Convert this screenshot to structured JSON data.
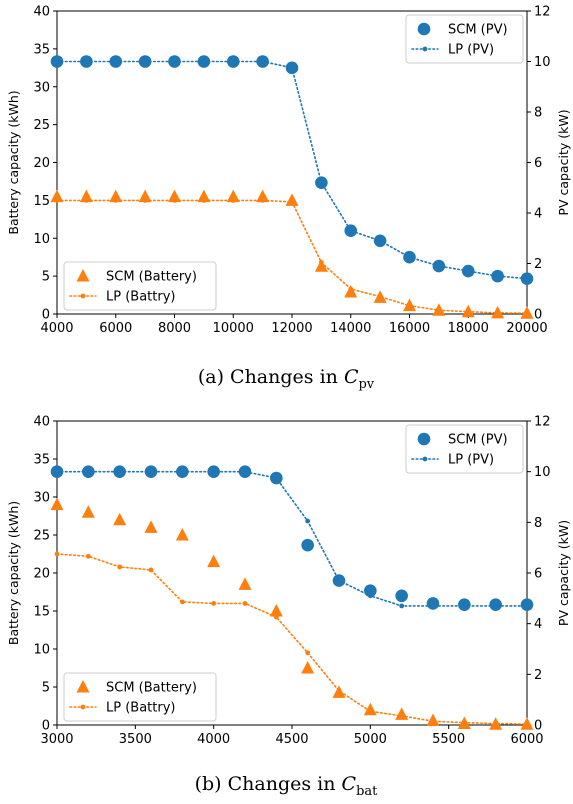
{
  "colors": {
    "scm_pv": "#1f77b4",
    "lp_pv": "#1f77b4",
    "scm_battery": "#ff7f0e",
    "lp_battery": "#ff7f0e"
  },
  "chart_data": [
    {
      "type": "scatter",
      "caption_prefix": "(a) Changes in ",
      "caption_var": "C",
      "caption_sub": "pv",
      "xlabel": "",
      "ylabel_left": "Battery capacity (kWh)",
      "ylabel_right": "PV capacity (kW)",
      "xlim": [
        4000,
        20000
      ],
      "ylim_left": [
        0,
        40
      ],
      "ylim_right": [
        0,
        12
      ],
      "xticks": [
        4000,
        6000,
        8000,
        10000,
        12000,
        14000,
        16000,
        18000,
        20000
      ],
      "yticks_left": [
        0,
        5,
        10,
        15,
        20,
        25,
        30,
        35,
        40
      ],
      "yticks_right": [
        0,
        2,
        4,
        6,
        8,
        10,
        12
      ],
      "legend_right_top": [
        "SCM (PV)",
        "LP (PV)"
      ],
      "legend_left_bottom": [
        "SCM (Battery)",
        "LP (Battry)"
      ],
      "x": [
        4000,
        5000,
        6000,
        7000,
        8000,
        9000,
        10000,
        11000,
        12000,
        13000,
        14000,
        15000,
        16000,
        17000,
        18000,
        19000,
        20000
      ],
      "series": [
        {
          "name": "SCM (PV)",
          "axis": "right",
          "style": "circle",
          "values": [
            10,
            10,
            10,
            10,
            10,
            10,
            10,
            10,
            9.75,
            5.2,
            3.3,
            2.9,
            2.25,
            1.9,
            1.7,
            1.5,
            1.4
          ]
        },
        {
          "name": "LP (PV)",
          "axis": "right",
          "style": "dotted-line",
          "values": [
            10,
            10,
            10,
            10,
            10,
            10,
            10,
            10,
            9.75,
            5.2,
            3.3,
            2.9,
            2.25,
            1.9,
            1.7,
            1.5,
            1.4
          ]
        },
        {
          "name": "SCM (Battery)",
          "axis": "left",
          "style": "triangle",
          "values": [
            15.5,
            15.5,
            15.5,
            15.5,
            15.5,
            15.5,
            15.5,
            15.5,
            15.0,
            6.3,
            2.9,
            2.2,
            1.1,
            0.5,
            0.3,
            0.15,
            0.1
          ]
        },
        {
          "name": "LP (Battry)",
          "axis": "left",
          "style": "dotted-line",
          "values": [
            15.0,
            15.0,
            15.0,
            15.0,
            15.0,
            15.0,
            15.0,
            15.0,
            14.8,
            6.8,
            3.3,
            2.3,
            1.1,
            0.5,
            0.3,
            0.15,
            0.1
          ]
        }
      ]
    },
    {
      "type": "scatter",
      "caption_prefix": "(b) Changes in ",
      "caption_var": "C",
      "caption_sub": "bat",
      "xlabel": "",
      "ylabel_left": "Battery capacity (kWh)",
      "ylabel_right": "PV capacity (kW)",
      "xlim": [
        3000,
        6000
      ],
      "ylim_left": [
        0,
        40
      ],
      "ylim_right": [
        0,
        12
      ],
      "xticks": [
        3000,
        3500,
        4000,
        4500,
        5000,
        5500,
        6000
      ],
      "yticks_left": [
        0,
        5,
        10,
        15,
        20,
        25,
        30,
        35,
        40
      ],
      "yticks_right": [
        0,
        2,
        4,
        6,
        8,
        10,
        12
      ],
      "legend_right_top": [
        "SCM (PV)",
        "LP (PV)"
      ],
      "legend_left_bottom": [
        "SCM (Battery)",
        "LP (Battry)"
      ],
      "x": [
        3000,
        3200,
        3400,
        3600,
        3800,
        4000,
        4200,
        4400,
        4600,
        4800,
        5000,
        5200,
        5400,
        5600,
        5800,
        6000
      ],
      "series": [
        {
          "name": "SCM (PV)",
          "axis": "right",
          "style": "circle",
          "values": [
            10,
            10,
            10,
            10,
            10,
            10,
            10,
            9.75,
            7.1,
            5.7,
            5.3,
            5.1,
            4.8,
            4.75,
            4.75,
            4.75
          ]
        },
        {
          "name": "LP (PV)",
          "axis": "right",
          "style": "dotted-line",
          "values": [
            10,
            10,
            10,
            10,
            10,
            10,
            10,
            9.75,
            8.05,
            5.7,
            5.1,
            4.7,
            4.7,
            4.7,
            4.7,
            4.7
          ]
        },
        {
          "name": "SCM (Battery)",
          "axis": "left",
          "style": "triangle",
          "values": [
            29,
            28,
            27,
            26,
            25,
            21.5,
            18.5,
            15,
            7.5,
            4.3,
            2.0,
            1.4,
            0.6,
            0.2,
            0.1,
            0.1
          ]
        },
        {
          "name": "LP (Battry)",
          "axis": "left",
          "style": "dotted-line",
          "values": [
            22.5,
            22.2,
            20.8,
            20.4,
            16.2,
            16,
            16,
            14.2,
            9.5,
            4.5,
            1.8,
            1.2,
            0.5,
            0.3,
            0.2,
            0.1
          ]
        }
      ]
    }
  ]
}
